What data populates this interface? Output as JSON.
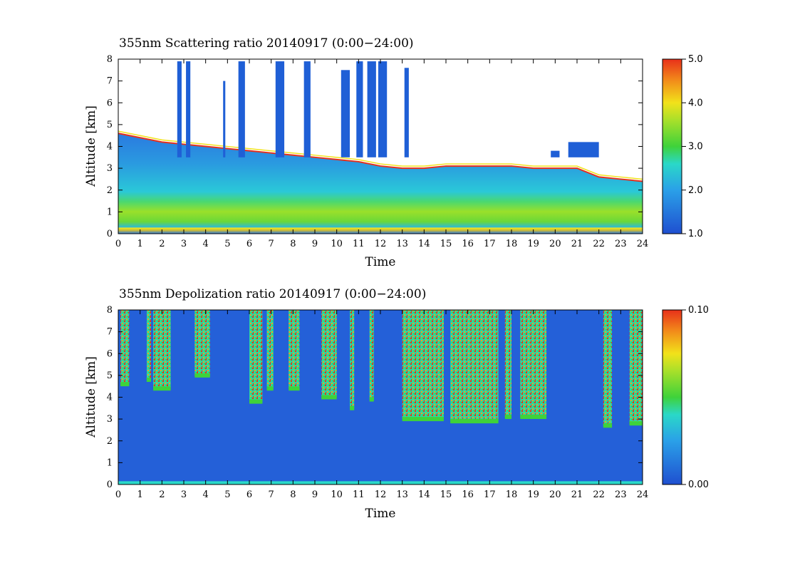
{
  "chart_data": [
    {
      "type": "heatmap",
      "title": "355nm Scattering ratio  20140917 (0:00−24:00)",
      "xlabel": "Time",
      "ylabel": "Altitude [km]",
      "xlim": [
        0,
        24
      ],
      "ylim": [
        0,
        8
      ],
      "x_ticks": [
        "0",
        "1",
        "2",
        "3",
        "4",
        "5",
        "6",
        "7",
        "8",
        "9",
        "10",
        "11",
        "12",
        "13",
        "14",
        "15",
        "16",
        "17",
        "18",
        "19",
        "20",
        "21",
        "22",
        "23",
        "24"
      ],
      "y_ticks": [
        "0",
        "1",
        "2",
        "3",
        "4",
        "5",
        "6",
        "7",
        "8"
      ],
      "colorbar": {
        "range": [
          1.0,
          5.0
        ],
        "ticks": [
          "1.0",
          "2.0",
          "3.0",
          "4.0",
          "5.0"
        ]
      },
      "cloud_base_km": [
        [
          0,
          4.6
        ],
        [
          1,
          4.4
        ],
        [
          2,
          4.2
        ],
        [
          3,
          4.1
        ],
        [
          4,
          4.0
        ],
        [
          5,
          3.9
        ],
        [
          6,
          3.8
        ],
        [
          7,
          3.7
        ],
        [
          8,
          3.6
        ],
        [
          9,
          3.5
        ],
        [
          10,
          3.4
        ],
        [
          11,
          3.3
        ],
        [
          12,
          3.1
        ],
        [
          13,
          3.0
        ],
        [
          14,
          3.0
        ],
        [
          15,
          3.1
        ],
        [
          16,
          3.1
        ],
        [
          17,
          3.1
        ],
        [
          18,
          3.1
        ],
        [
          19,
          3.0
        ],
        [
          20,
          3.0
        ],
        [
          21,
          3.0
        ],
        [
          22,
          2.6
        ],
        [
          23,
          2.5
        ],
        [
          24,
          2.4
        ]
      ],
      "columns": [
        [
          2.7,
          2.9,
          7.9
        ],
        [
          3.1,
          3.3,
          7.9
        ],
        [
          4.8,
          4.9,
          7.0
        ],
        [
          5.5,
          5.8,
          7.9
        ],
        [
          7.2,
          7.6,
          7.9
        ],
        [
          8.5,
          8.8,
          7.9
        ],
        [
          10.2,
          10.6,
          7.5
        ],
        [
          10.9,
          11.2,
          7.9
        ],
        [
          11.4,
          11.8,
          7.9
        ],
        [
          11.9,
          12.3,
          7.9
        ],
        [
          13.1,
          13.3,
          7.6
        ],
        [
          19.8,
          20.2,
          3.8
        ],
        [
          20.6,
          22.0,
          4.2
        ]
      ]
    },
    {
      "type": "heatmap",
      "title": "355nm Depolization ratio  20140917 (0:00−24:00)",
      "xlabel": "Time",
      "ylabel": "Altitude [km]",
      "xlim": [
        0,
        24
      ],
      "ylim": [
        0,
        8
      ],
      "x_ticks": [
        "0",
        "1",
        "2",
        "3",
        "4",
        "5",
        "6",
        "7",
        "8",
        "9",
        "10",
        "11",
        "12",
        "13",
        "14",
        "15",
        "16",
        "17",
        "18",
        "19",
        "20",
        "21",
        "22",
        "23",
        "24"
      ],
      "y_ticks": [
        "0",
        "1",
        "2",
        "3",
        "4",
        "5",
        "6",
        "7",
        "8"
      ],
      "colorbar": {
        "range": [
          0.0,
          0.1
        ],
        "ticks": [
          "0.00",
          "0.10"
        ]
      },
      "high_depol_regions": [
        [
          0.1,
          0.5,
          4.6
        ],
        [
          1.3,
          1.5,
          4.8
        ],
        [
          1.6,
          2.4,
          4.4
        ],
        [
          3.5,
          4.2,
          5.0
        ],
        [
          6.0,
          6.6,
          3.8
        ],
        [
          6.8,
          7.1,
          4.4
        ],
        [
          7.8,
          8.3,
          4.4
        ],
        [
          9.3,
          10.0,
          4.0
        ],
        [
          10.6,
          10.8,
          3.5
        ],
        [
          11.5,
          11.7,
          3.9
        ],
        [
          13.0,
          14.9,
          3.0
        ],
        [
          15.2,
          17.4,
          2.9
        ],
        [
          17.7,
          18.0,
          3.1
        ],
        [
          18.4,
          19.6,
          3.1
        ],
        [
          22.2,
          22.6,
          2.7
        ],
        [
          23.4,
          24.0,
          2.8
        ]
      ]
    }
  ],
  "colors": {
    "clear_air": "#ffffff",
    "low": "#1f5fd6",
    "mid": "#2ad8c8",
    "green": "#3fd23a",
    "yellow": "#f2e21a",
    "high": "#e8301a"
  }
}
